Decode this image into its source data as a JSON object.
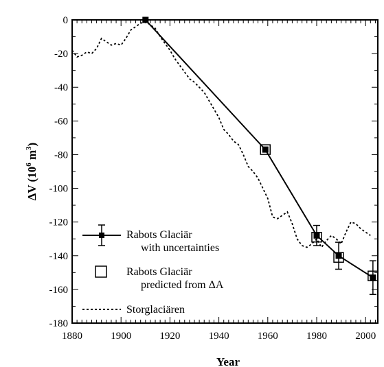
{
  "chart_data": {
    "type": "line",
    "xlabel": "Year",
    "ylabel": "ΔV (10",
    "ylabel_exp": "6",
    "ylabel_tail": " m",
    "ylabel_exp2": "3",
    "ylabel_close": ")",
    "xlim": [
      1880,
      2005
    ],
    "ylim": [
      -180,
      0
    ],
    "xticks": [
      1880,
      1900,
      1920,
      1940,
      1960,
      1980,
      2000
    ],
    "yticks": [
      0,
      -20,
      -40,
      -60,
      -80,
      -100,
      -120,
      -140,
      -160,
      -180
    ],
    "xtick_labels": [
      "1880",
      "1900",
      "1920",
      "1940",
      "1960",
      "1980",
      "2000"
    ],
    "ytick_labels": [
      "0",
      "-20",
      "-40",
      "-60",
      "-80",
      "-100",
      "-120",
      "-140",
      "-160",
      "-180"
    ],
    "grid": false,
    "legend_position": "bottom-left",
    "series": [
      {
        "name": "Rabots Glaciär with uncertainties",
        "legend_line1": "Rabots Glaciär",
        "legend_line2": "with uncertainties",
        "style": "solid-line-filled-square-errorbars",
        "x": [
          1910,
          1959,
          1980,
          1989,
          2003
        ],
        "y": [
          0,
          -77,
          -128,
          -140,
          -153
        ],
        "yerr": [
          0,
          0,
          6,
          8,
          10
        ]
      },
      {
        "name": "Rabots Glaciär predicted from ΔA",
        "legend_line1": "Rabots Glaciär",
        "legend_line2": "predicted from ΔA",
        "style": "open-square",
        "x": [
          1959,
          1980,
          1989,
          2003
        ],
        "y": [
          -77,
          -129,
          -141,
          -152
        ]
      },
      {
        "name": "Storglaciären",
        "legend_line1": "Storglaciären",
        "style": "dashed-line",
        "x": [
          1880,
          1882,
          1884,
          1886,
          1888,
          1890,
          1892,
          1894,
          1896,
          1898,
          1900,
          1902,
          1904,
          1906,
          1908,
          1910,
          1912,
          1914,
          1916,
          1918,
          1920,
          1922,
          1924,
          1926,
          1928,
          1930,
          1932,
          1934,
          1936,
          1938,
          1940,
          1942,
          1944,
          1946,
          1948,
          1950,
          1952,
          1954,
          1956,
          1958,
          1960,
          1962,
          1964,
          1966,
          1968,
          1970,
          1972,
          1974,
          1976,
          1978,
          1980,
          1982,
          1984,
          1986,
          1988,
          1990,
          1992,
          1994,
          1996,
          1998,
          2000,
          2002
        ],
        "y": [
          -18,
          -22,
          -21,
          -19,
          -20,
          -17,
          -11,
          -13,
          -15,
          -14,
          -15,
          -11,
          -6,
          -4,
          -2,
          -1,
          -3,
          -5,
          -10,
          -14,
          -18,
          -23,
          -27,
          -31,
          -35,
          -37,
          -40,
          -43,
          -48,
          -53,
          -58,
          -65,
          -68,
          -72,
          -74,
          -80,
          -87,
          -90,
          -94,
          -100,
          -106,
          -117,
          -118,
          -116,
          -114,
          -121,
          -130,
          -134,
          -135,
          -133,
          -130,
          -135,
          -131,
          -128,
          -130,
          -133,
          -126,
          -120,
          -121,
          -124,
          -126,
          -128
        ]
      }
    ]
  }
}
